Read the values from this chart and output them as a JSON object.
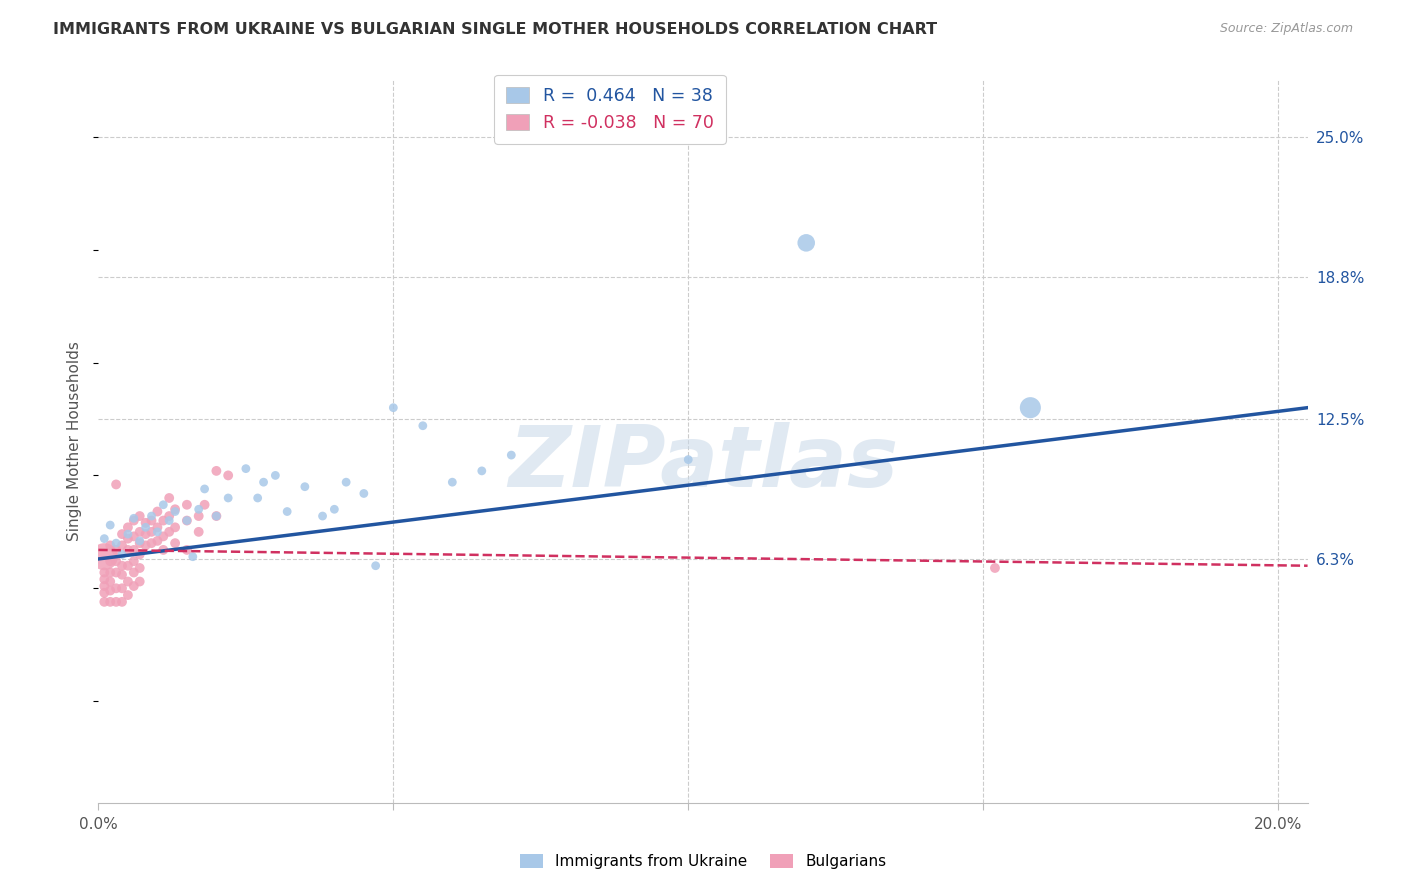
{
  "title": "IMMIGRANTS FROM UKRAINE VS BULGARIAN SINGLE MOTHER HOUSEHOLDS CORRELATION CHART",
  "source": "Source: ZipAtlas.com",
  "ylabel": "Single Mother Households",
  "ytick_labels": [
    "6.3%",
    "12.5%",
    "18.8%",
    "25.0%"
  ],
  "ytick_values": [
    0.063,
    0.125,
    0.188,
    0.25
  ],
  "xlim": [
    0.0,
    0.205
  ],
  "ylim": [
    -0.045,
    0.275
  ],
  "ukraine_R": "0.464",
  "ukraine_N": "38",
  "bulgarian_R": "-0.038",
  "bulgarian_N": "70",
  "ukraine_color": "#a8c8e8",
  "ukraine_line_color": "#2255a0",
  "bulgarian_color": "#f0a0b8",
  "bulgarian_line_color": "#d03060",
  "watermark": "ZIPatlas",
  "ukraine_scatter": [
    [
      0.001,
      0.072
    ],
    [
      0.002,
      0.078
    ],
    [
      0.003,
      0.07
    ],
    [
      0.004,
      0.065
    ],
    [
      0.005,
      0.074
    ],
    [
      0.006,
      0.081
    ],
    [
      0.007,
      0.071
    ],
    [
      0.008,
      0.077
    ],
    [
      0.009,
      0.082
    ],
    [
      0.01,
      0.075
    ],
    [
      0.011,
      0.087
    ],
    [
      0.012,
      0.08
    ],
    [
      0.013,
      0.084
    ],
    [
      0.015,
      0.08
    ],
    [
      0.016,
      0.064
    ],
    [
      0.017,
      0.085
    ],
    [
      0.018,
      0.094
    ],
    [
      0.02,
      0.082
    ],
    [
      0.022,
      0.09
    ],
    [
      0.025,
      0.103
    ],
    [
      0.027,
      0.09
    ],
    [
      0.028,
      0.097
    ],
    [
      0.03,
      0.1
    ],
    [
      0.032,
      0.084
    ],
    [
      0.035,
      0.095
    ],
    [
      0.038,
      0.082
    ],
    [
      0.04,
      0.085
    ],
    [
      0.042,
      0.097
    ],
    [
      0.045,
      0.092
    ],
    [
      0.047,
      0.06
    ],
    [
      0.05,
      0.13
    ],
    [
      0.055,
      0.122
    ],
    [
      0.06,
      0.097
    ],
    [
      0.065,
      0.102
    ],
    [
      0.07,
      0.109
    ],
    [
      0.1,
      0.107
    ],
    [
      0.12,
      0.203
    ],
    [
      0.158,
      0.13
    ]
  ],
  "ukraine_sizes": [
    40,
    40,
    40,
    40,
    40,
    40,
    40,
    40,
    40,
    40,
    40,
    40,
    40,
    40,
    40,
    40,
    40,
    40,
    40,
    40,
    40,
    40,
    40,
    40,
    40,
    40,
    40,
    40,
    40,
    40,
    40,
    40,
    40,
    40,
    40,
    40,
    160,
    230
  ],
  "bulgarian_scatter": [
    [
      0.001,
      0.064
    ],
    [
      0.001,
      0.057
    ],
    [
      0.001,
      0.054
    ],
    [
      0.001,
      0.051
    ],
    [
      0.001,
      0.048
    ],
    [
      0.001,
      0.044
    ],
    [
      0.002,
      0.069
    ],
    [
      0.002,
      0.062
    ],
    [
      0.002,
      0.057
    ],
    [
      0.002,
      0.053
    ],
    [
      0.002,
      0.049
    ],
    [
      0.002,
      0.044
    ],
    [
      0.003,
      0.096
    ],
    [
      0.003,
      0.067
    ],
    [
      0.003,
      0.062
    ],
    [
      0.003,
      0.057
    ],
    [
      0.003,
      0.05
    ],
    [
      0.003,
      0.044
    ],
    [
      0.004,
      0.074
    ],
    [
      0.004,
      0.069
    ],
    [
      0.004,
      0.06
    ],
    [
      0.004,
      0.056
    ],
    [
      0.004,
      0.05
    ],
    [
      0.004,
      0.044
    ],
    [
      0.005,
      0.077
    ],
    [
      0.005,
      0.072
    ],
    [
      0.005,
      0.067
    ],
    [
      0.005,
      0.06
    ],
    [
      0.005,
      0.053
    ],
    [
      0.005,
      0.047
    ],
    [
      0.006,
      0.08
    ],
    [
      0.006,
      0.073
    ],
    [
      0.006,
      0.067
    ],
    [
      0.006,
      0.062
    ],
    [
      0.006,
      0.057
    ],
    [
      0.006,
      0.051
    ],
    [
      0.007,
      0.082
    ],
    [
      0.007,
      0.075
    ],
    [
      0.007,
      0.07
    ],
    [
      0.007,
      0.065
    ],
    [
      0.007,
      0.059
    ],
    [
      0.007,
      0.053
    ],
    [
      0.008,
      0.079
    ],
    [
      0.008,
      0.074
    ],
    [
      0.008,
      0.069
    ],
    [
      0.009,
      0.08
    ],
    [
      0.009,
      0.075
    ],
    [
      0.009,
      0.07
    ],
    [
      0.01,
      0.084
    ],
    [
      0.01,
      0.077
    ],
    [
      0.01,
      0.071
    ],
    [
      0.011,
      0.08
    ],
    [
      0.011,
      0.073
    ],
    [
      0.011,
      0.067
    ],
    [
      0.012,
      0.09
    ],
    [
      0.012,
      0.082
    ],
    [
      0.012,
      0.075
    ],
    [
      0.013,
      0.085
    ],
    [
      0.013,
      0.077
    ],
    [
      0.013,
      0.07
    ],
    [
      0.015,
      0.087
    ],
    [
      0.015,
      0.08
    ],
    [
      0.015,
      0.067
    ],
    [
      0.017,
      0.082
    ],
    [
      0.017,
      0.075
    ],
    [
      0.018,
      0.087
    ],
    [
      0.02,
      0.102
    ],
    [
      0.02,
      0.082
    ],
    [
      0.022,
      0.1
    ],
    [
      0.152,
      0.059
    ]
  ],
  "bulgarian_sizes": [
    380,
    50,
    50,
    50,
    50,
    50,
    50,
    50,
    50,
    50,
    50,
    50,
    50,
    50,
    50,
    50,
    50,
    50,
    50,
    50,
    50,
    50,
    50,
    50,
    50,
    50,
    50,
    50,
    50,
    50,
    50,
    50,
    50,
    50,
    50,
    50,
    50,
    50,
    50,
    50,
    50,
    50,
    50,
    50,
    50,
    50,
    50,
    50,
    50,
    50,
    50,
    50,
    50,
    50,
    50,
    50,
    50,
    50,
    50,
    50,
    50,
    50,
    50,
    50,
    50,
    50,
    50,
    50,
    50,
    50
  ],
  "ukr_line_x": [
    0.0,
    0.205
  ],
  "ukr_line_y": [
    0.063,
    0.13
  ],
  "bul_line_x": [
    0.0,
    0.205
  ],
  "bul_line_y": [
    0.067,
    0.06
  ],
  "hgrid_values": [
    0.063,
    0.125,
    0.188,
    0.25
  ],
  "vgrid_values": [
    0.05,
    0.1,
    0.15,
    0.2
  ]
}
